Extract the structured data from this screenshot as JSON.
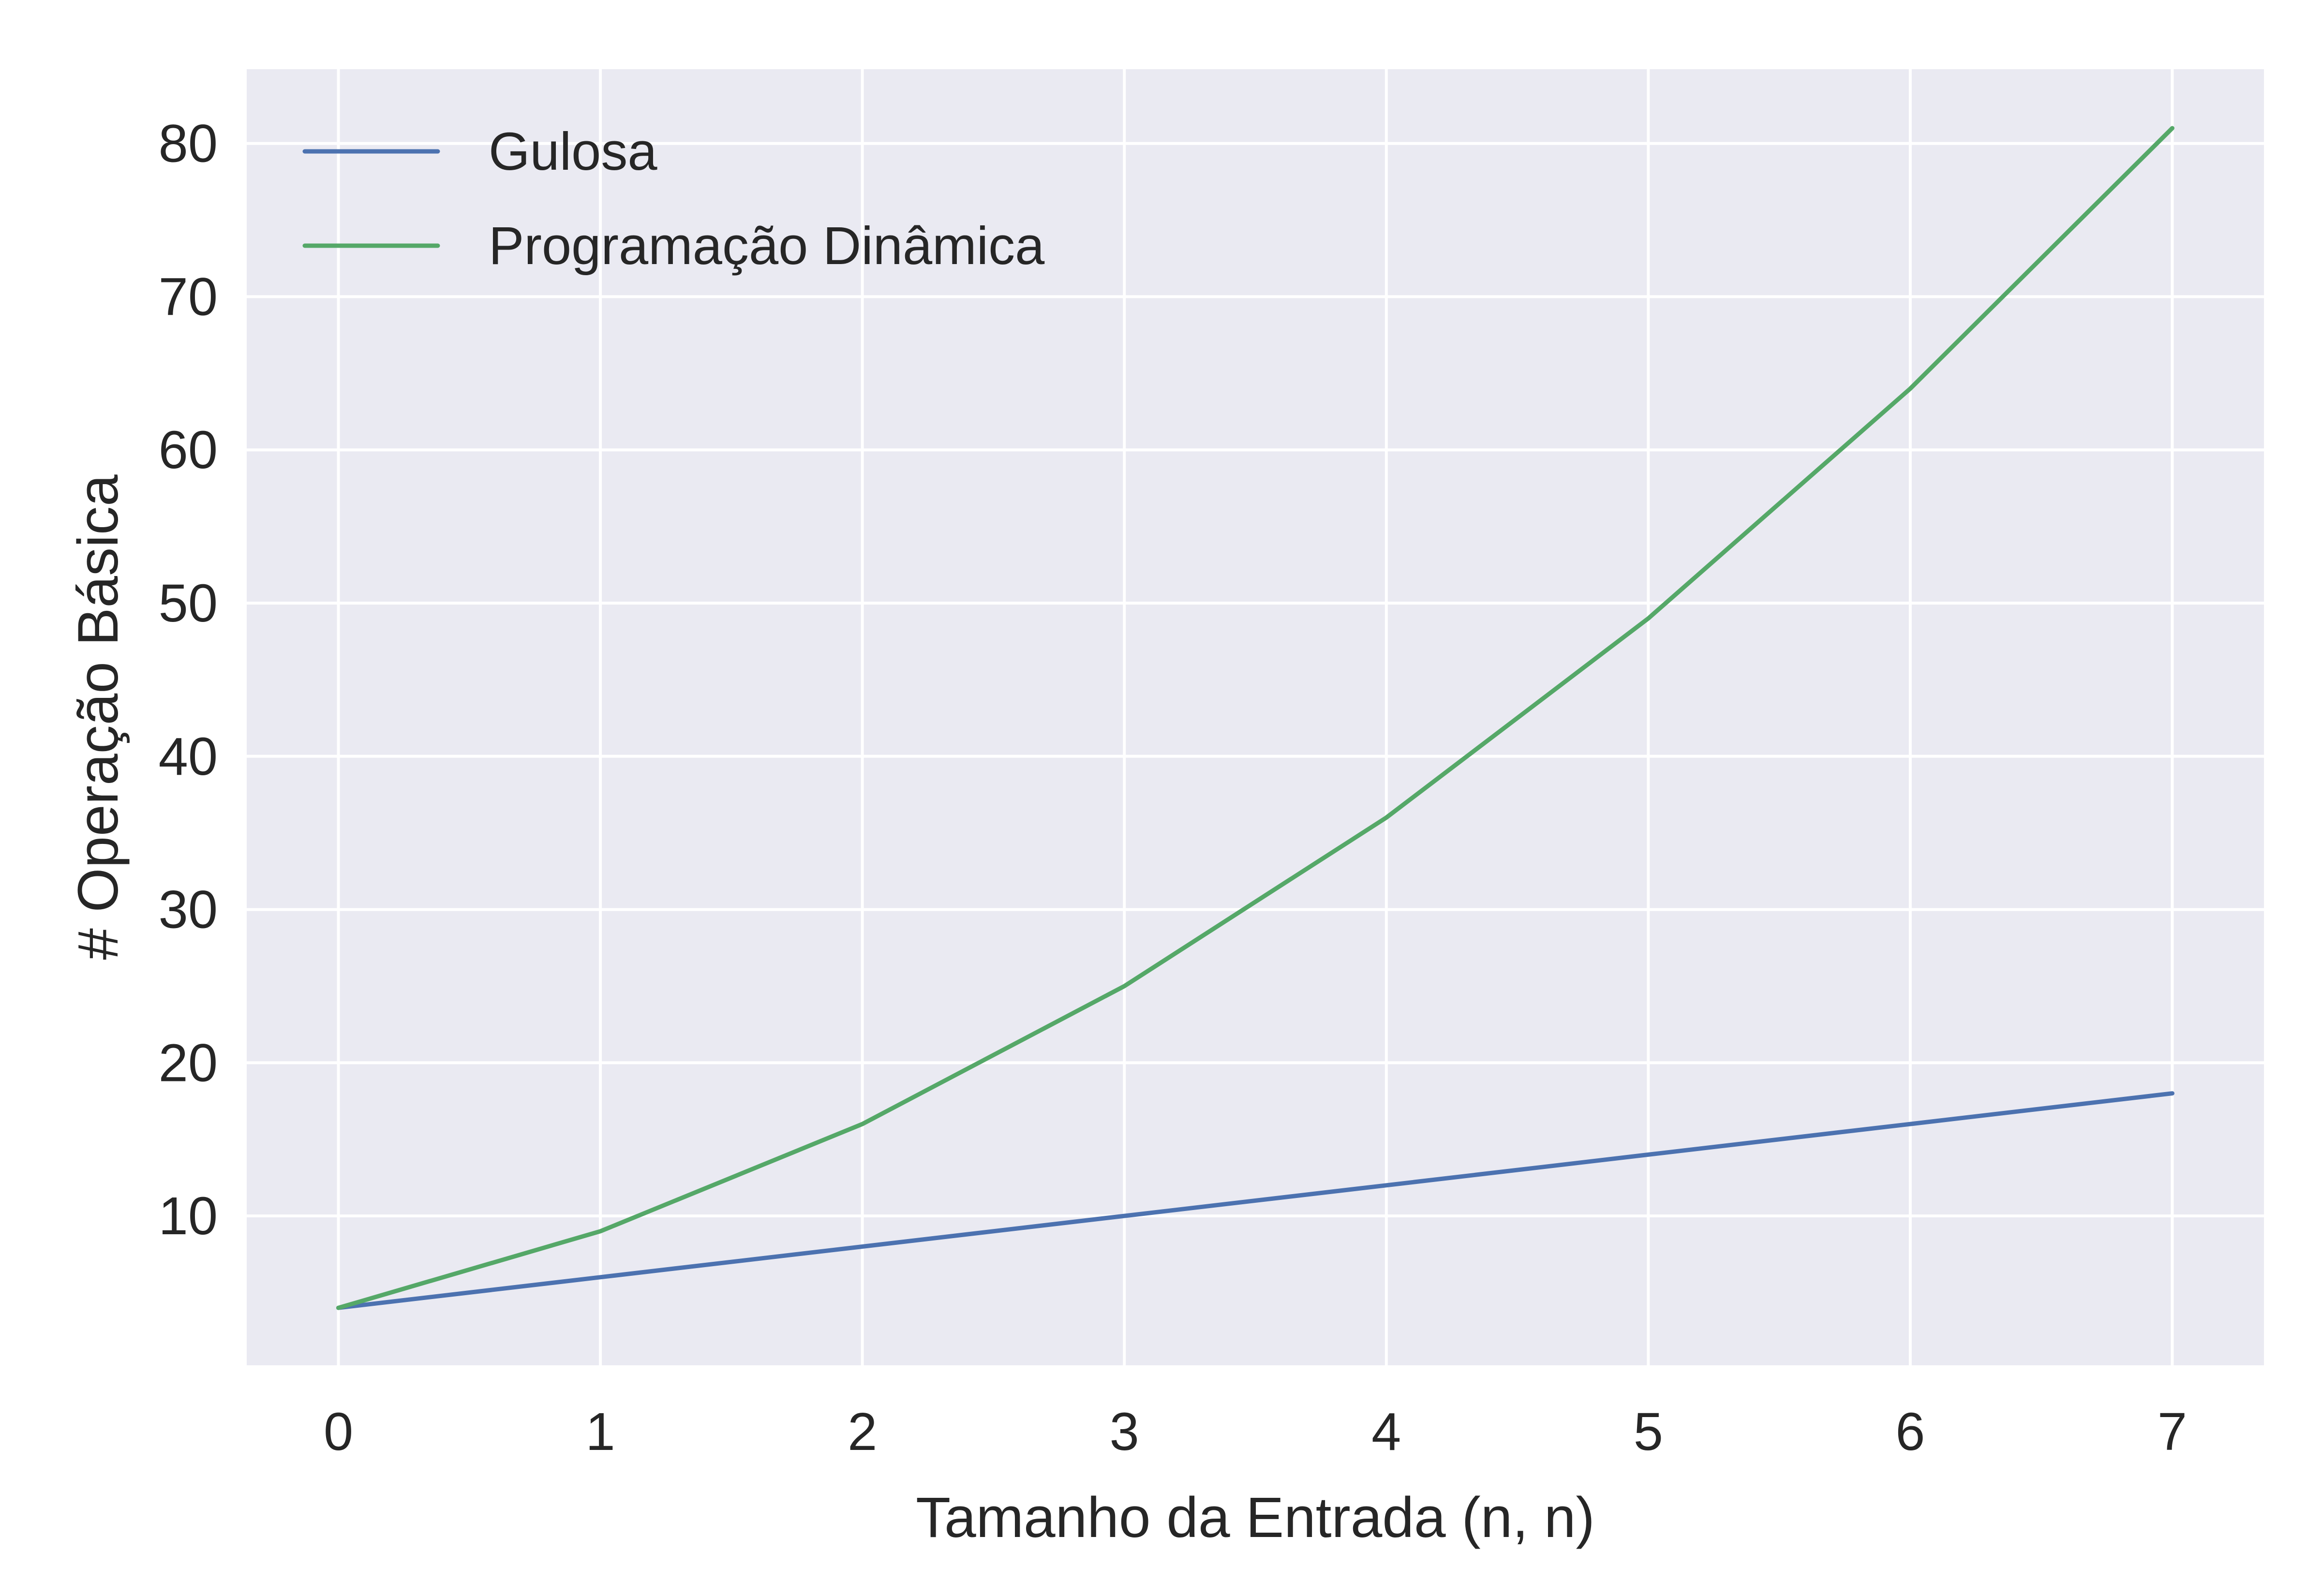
{
  "chart_data": {
    "type": "line",
    "title": "",
    "xlabel": "Tamanho da Entrada (n, n)",
    "ylabel": "# Operação Básica",
    "x": [
      0,
      1,
      2,
      3,
      4,
      5,
      6,
      7
    ],
    "xticks": [
      0,
      1,
      2,
      3,
      4,
      5,
      6,
      7
    ],
    "yticks": [
      10,
      20,
      30,
      40,
      50,
      60,
      70,
      80
    ],
    "xlim": [
      -0.35,
      7.35
    ],
    "ylim": [
      0.25,
      84.85
    ],
    "grid": true,
    "legend_position": "top-left",
    "series": [
      {
        "name": "Gulosa",
        "color": "#4c72b0",
        "values": [
          4,
          6,
          8,
          10,
          12,
          14,
          16,
          18
        ]
      },
      {
        "name": "Programação Dinâmica",
        "color": "#55a868",
        "values": [
          4,
          9,
          16,
          25,
          36,
          49,
          64,
          81
        ]
      }
    ],
    "background_color": "#eaeaf2",
    "grid_color": "#ffffff"
  }
}
